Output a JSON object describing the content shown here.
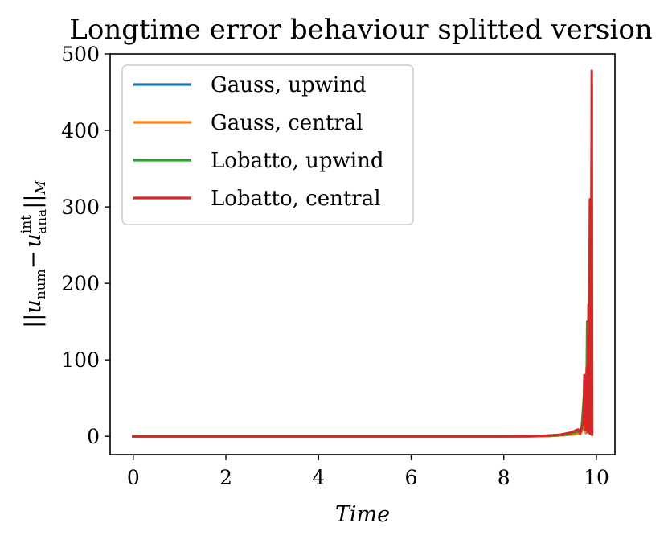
{
  "chart_data": {
    "type": "line",
    "title": "Longtime error behaviour splitted version",
    "xlabel": "Time",
    "ylabel": "||u_num − u_ana^int||_M",
    "ylabel_parts": {
      "bars_open": "||",
      "u": "u",
      "num": "num",
      "minus": "−",
      "u2": "u",
      "int": "int",
      "ana": "ana",
      "bars_close": "||",
      "M": "M"
    },
    "xlim": [
      -0.5,
      10.4
    ],
    "ylim": [
      -24,
      500
    ],
    "xticks": [
      0,
      2,
      4,
      6,
      8,
      10
    ],
    "yticks": [
      0,
      100,
      200,
      300,
      400,
      500
    ],
    "legend_location": "upper-left",
    "series": [
      {
        "name": "Gauss, upwind",
        "color": "#1f77b4",
        "x": [
          0,
          8.5,
          9.0,
          9.3,
          9.55,
          9.65,
          9.72,
          9.76,
          9.79,
          9.81,
          9.83,
          9.85,
          9.87,
          9.9
        ],
        "y": [
          0,
          0,
          0.5,
          1.5,
          3,
          5,
          10,
          30,
          5,
          45,
          8,
          70,
          6,
          35
        ]
      },
      {
        "name": "Gauss, central",
        "color": "#ff7f0e",
        "x": [
          0,
          8.5,
          9.0,
          9.3,
          9.55,
          9.65,
          9.7,
          9.74,
          9.77,
          9.8,
          9.82,
          9.85,
          9.87,
          9.9
        ],
        "y": [
          0,
          0,
          0.5,
          1.5,
          3,
          4,
          8,
          25,
          4,
          55,
          6,
          40,
          4,
          50
        ]
      },
      {
        "name": "Lobatto, upwind",
        "color": "#2ca02c",
        "x": [
          0,
          8.5,
          9.0,
          9.3,
          9.55,
          9.68,
          9.74,
          9.78,
          9.8,
          9.83,
          9.86,
          9.88,
          9.9
        ],
        "y": [
          0,
          0,
          0.6,
          2,
          5,
          10,
          60,
          8,
          150,
          10,
          300,
          5,
          460
        ]
      },
      {
        "name": "Lobatto, central",
        "color": "#d62728",
        "x": [
          0,
          8.0,
          8.8,
          9.2,
          9.45,
          9.6,
          9.65,
          9.72,
          9.74,
          9.77,
          9.79,
          9.81,
          9.83,
          9.85,
          9.86,
          9.88,
          9.9,
          9.91
        ],
        "y": [
          0,
          0,
          0.5,
          2,
          5,
          9,
          3,
          20,
          80,
          8,
          90,
          6,
          172,
          4,
          310,
          3,
          478,
          2
        ]
      }
    ]
  }
}
